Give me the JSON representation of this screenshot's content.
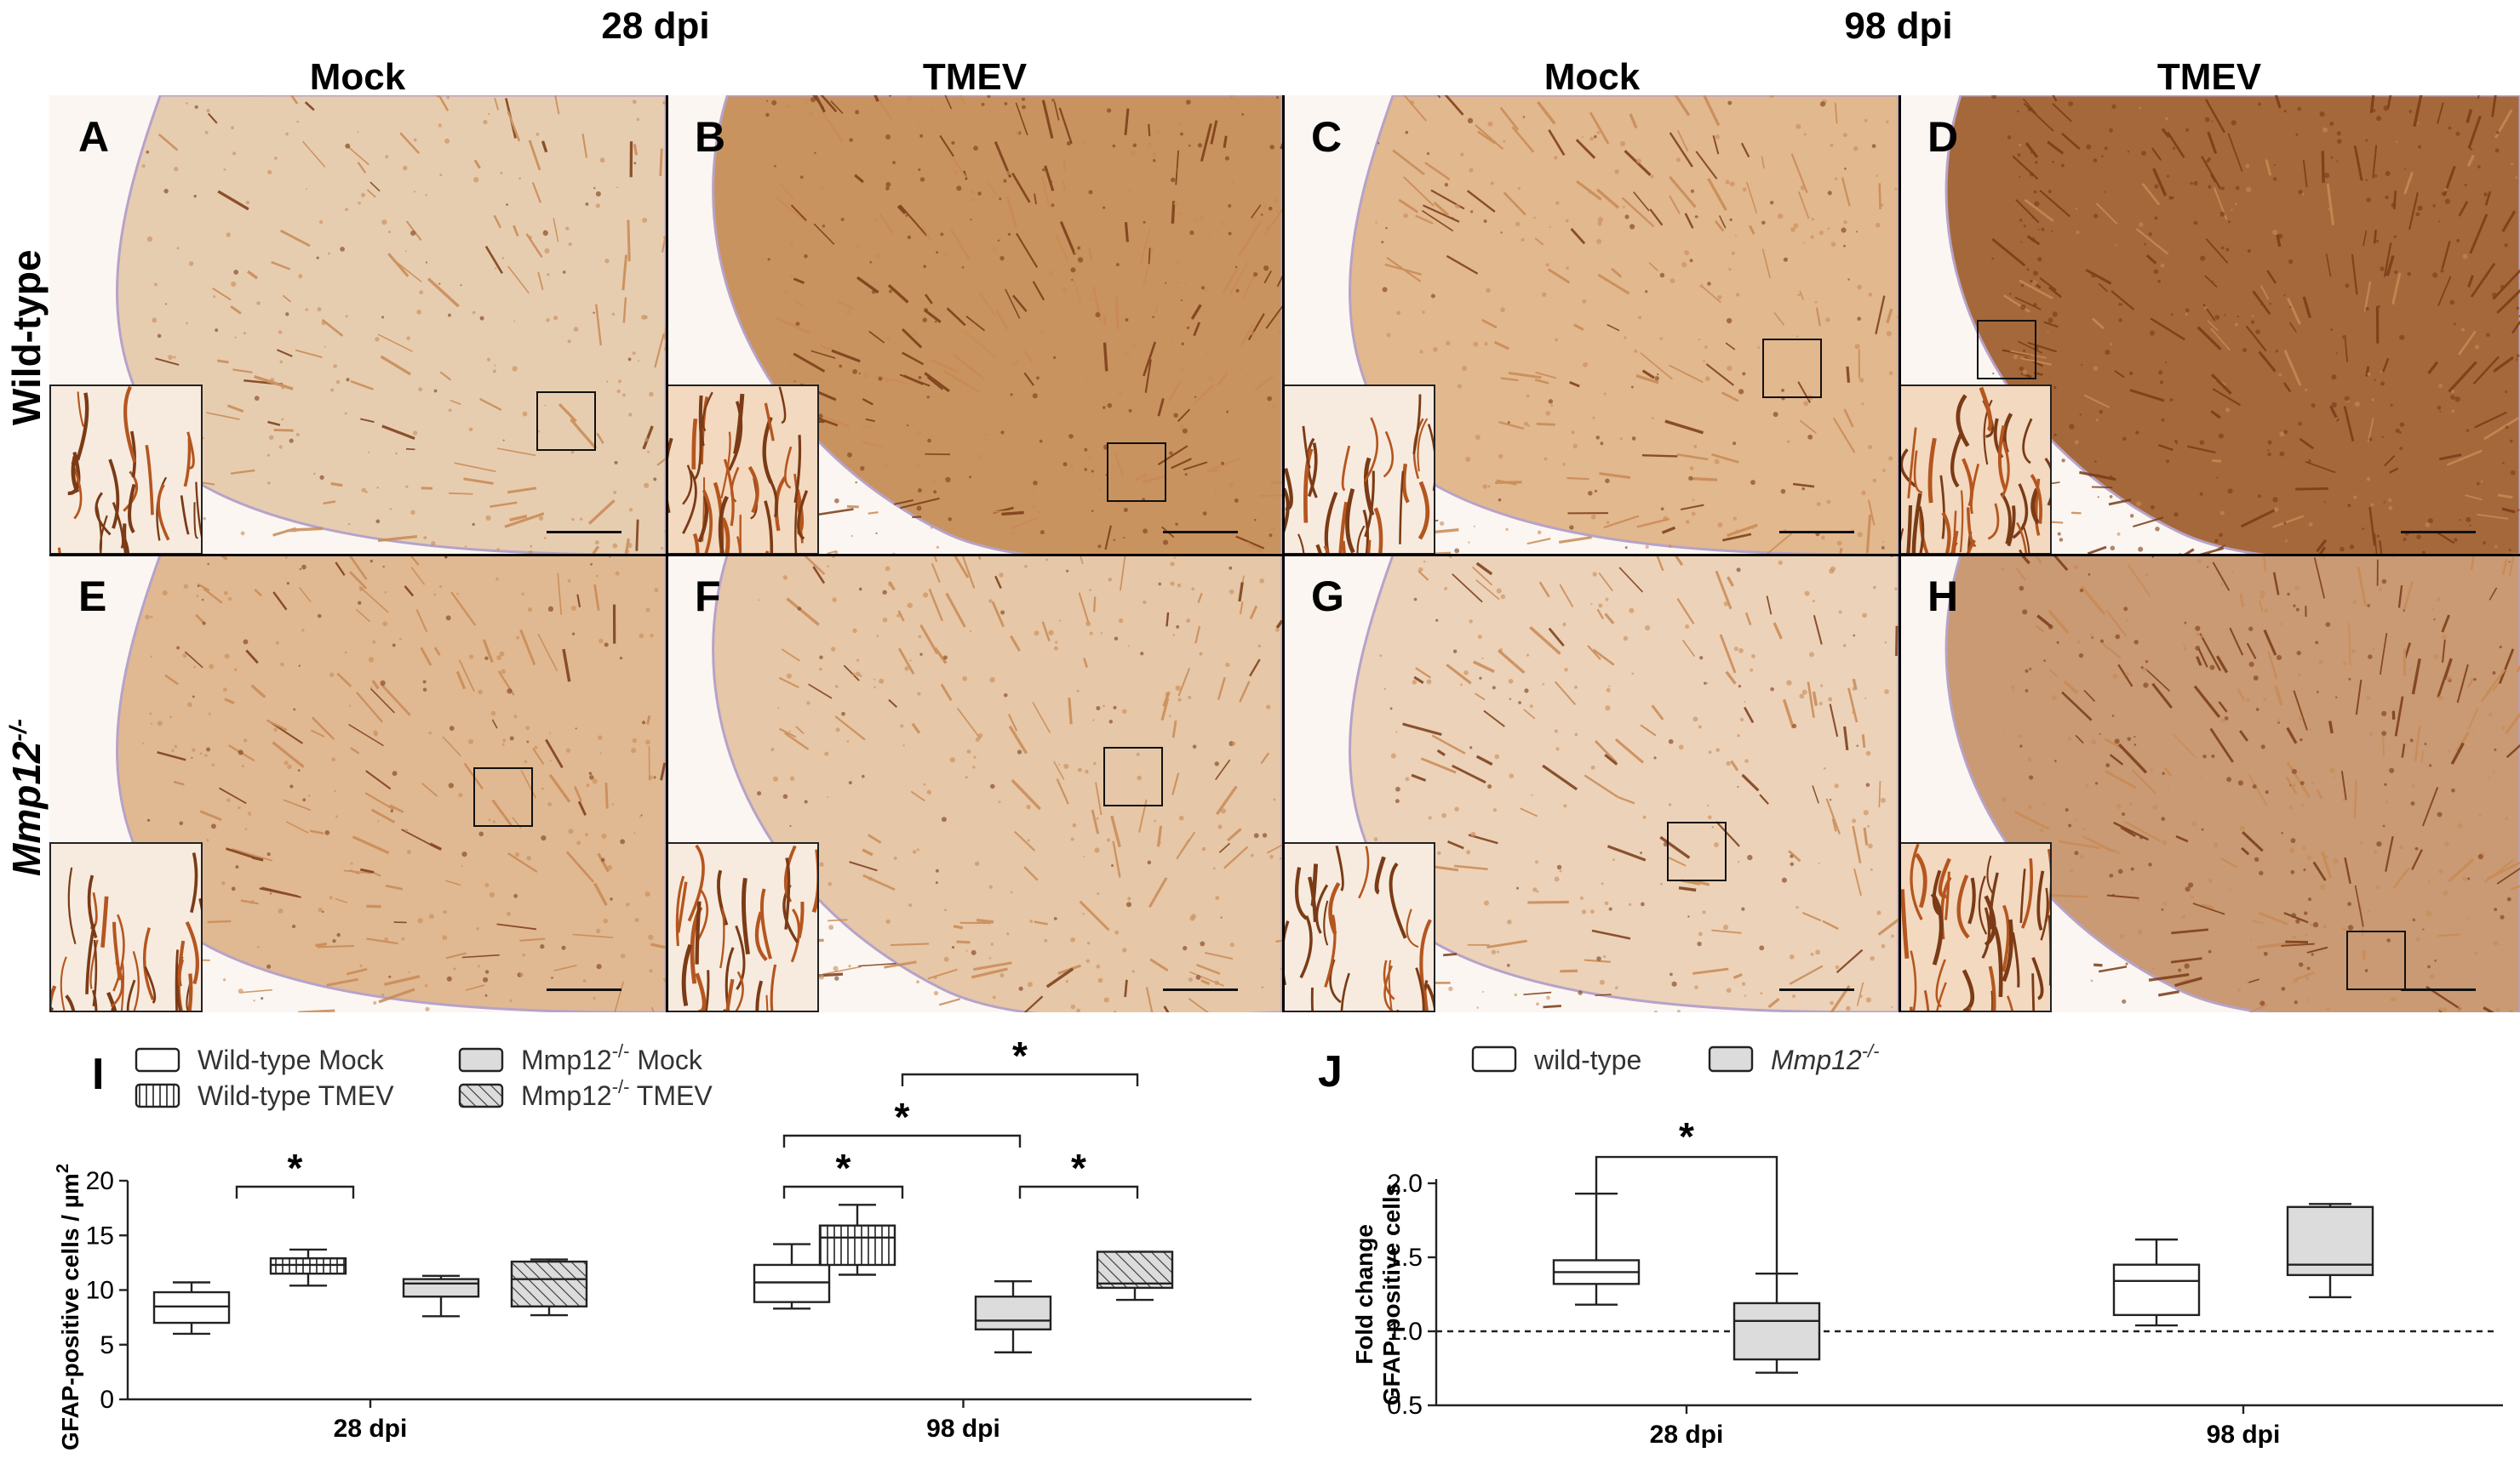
{
  "figure": {
    "time_headers": [
      "28 dpi",
      "98 dpi"
    ],
    "group_headers": [
      "Mock",
      "TMEV",
      "Mock",
      "TMEV"
    ],
    "row_labels": {
      "wildtype": "Wild-type",
      "mmp12": "Mmp12",
      "mmp12_sup": "-/-"
    },
    "panel_letters": [
      "A",
      "B",
      "C",
      "D",
      "E",
      "F",
      "G",
      "H"
    ],
    "colors": {
      "stain_light": "#e8c9a6",
      "stain_mid": "#c98a55",
      "stain_dark": "#7a3b16",
      "counter": "#b7a2c8"
    }
  },
  "chart_I": {
    "panel_letter": "I",
    "legend": [
      {
        "text": "Wild-type Mock",
        "sup": "",
        "style": "white"
      },
      {
        "text": "Wild-type TMEV",
        "sup": "",
        "style": "vertical"
      },
      {
        "text": "Mmp12",
        "sup": "-/-",
        "rest": " Mock",
        "style": "grey"
      },
      {
        "text": "Mmp12",
        "sup": "-/-",
        "rest": " TMEV",
        "style": "hatch"
      }
    ],
    "ylabel": "GFAP-positive cells / µm",
    "ylabel_sup": "2",
    "yticks": [
      "0",
      "5",
      "10",
      "15",
      "20"
    ],
    "star": "*"
  },
  "chart_J": {
    "panel_letter": "J",
    "legend": [
      {
        "text": "wild-type",
        "sup": "",
        "style": "white"
      },
      {
        "text": "Mmp12",
        "sup": "-/-",
        "style": "grey"
      }
    ],
    "ylabel_line1": "Fold change",
    "ylabel_line2": "GFAP-positive cells",
    "yticks": [
      "0.5",
      "1.0",
      "1.5",
      "2.0"
    ],
    "star": "*"
  },
  "chart_data": [
    {
      "type": "box",
      "title": "",
      "xlabel": "",
      "ylabel": "GFAP-positive cells / µm2",
      "ylim": [
        0,
        20
      ],
      "categories": [
        "28 dpi",
        "98 dpi"
      ],
      "series": [
        {
          "name": "Wild-type Mock",
          "boxes": [
            {
              "min": 6.0,
              "q1": 7.0,
              "median": 8.5,
              "q3": 9.8,
              "max": 10.7
            },
            {
              "min": 8.3,
              "q1": 8.9,
              "median": 10.7,
              "q3": 12.3,
              "max": 14.2
            }
          ]
        },
        {
          "name": "Wild-type TMEV",
          "boxes": [
            {
              "min": 10.4,
              "q1": 11.5,
              "median": 12.3,
              "q3": 12.9,
              "max": 13.7
            },
            {
              "min": 11.4,
              "q1": 12.3,
              "median": 14.8,
              "q3": 15.9,
              "max": 17.8
            }
          ]
        },
        {
          "name": "Mmp12-/- Mock",
          "boxes": [
            {
              "min": 7.6,
              "q1": 9.4,
              "median": 10.6,
              "q3": 11.0,
              "max": 11.3
            },
            {
              "min": 4.3,
              "q1": 6.4,
              "median": 7.2,
              "q3": 9.4,
              "max": 10.8
            }
          ]
        },
        {
          "name": "Mmp12-/- TMEV",
          "boxes": [
            {
              "min": 7.7,
              "q1": 8.5,
              "median": 11.0,
              "q3": 12.6,
              "max": 12.8
            },
            {
              "min": 9.1,
              "q1": 10.2,
              "median": 10.6,
              "q3": 13.5,
              "max": 13.5
            }
          ]
        }
      ],
      "significance": [
        {
          "category": "28 dpi",
          "between": [
            "Wild-type Mock",
            "Wild-type TMEV"
          ],
          "label": "*"
        },
        {
          "category": "98 dpi",
          "between": [
            "Wild-type Mock",
            "Wild-type TMEV"
          ],
          "label": "*"
        },
        {
          "category": "98 dpi",
          "between": [
            "Mmp12-/- Mock",
            "Mmp12-/- TMEV"
          ],
          "label": "*"
        },
        {
          "category": "98 dpi",
          "between": [
            "Wild-type Mock",
            "Mmp12-/- Mock"
          ],
          "label": "*"
        },
        {
          "category": "98 dpi",
          "between": [
            "Wild-type TMEV",
            "Mmp12-/- TMEV"
          ],
          "label": "*"
        }
      ]
    },
    {
      "type": "box",
      "title": "",
      "xlabel": "",
      "ylabel": "Fold change GFAP-positive cells",
      "ylim": [
        0.5,
        2.0
      ],
      "reference_line": 1.0,
      "categories": [
        "28 dpi",
        "98 dpi"
      ],
      "series": [
        {
          "name": "wild-type",
          "boxes": [
            {
              "min": 1.18,
              "q1": 1.32,
              "median": 1.4,
              "q3": 1.48,
              "max": 1.93
            },
            {
              "min": 1.04,
              "q1": 1.11,
              "median": 1.34,
              "q3": 1.45,
              "max": 1.62
            }
          ]
        },
        {
          "name": "Mmp12-/-",
          "boxes": [
            {
              "min": 0.72,
              "q1": 0.81,
              "median": 1.07,
              "q3": 1.19,
              "max": 1.39
            },
            {
              "min": 1.23,
              "q1": 1.38,
              "median": 1.45,
              "q3": 1.84,
              "max": 1.86
            }
          ]
        }
      ],
      "significance": [
        {
          "category": "28 dpi",
          "between": [
            "wild-type",
            "Mmp12-/-"
          ],
          "label": "*"
        }
      ]
    }
  ]
}
